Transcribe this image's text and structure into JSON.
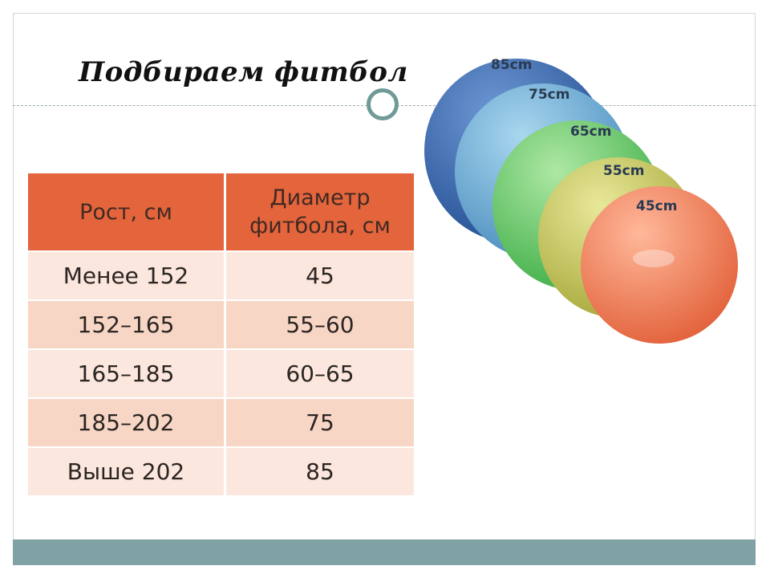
{
  "slide": {
    "title": "Подбираем фитбол"
  },
  "table": {
    "headers": {
      "height": "Рост, см",
      "diameter_line1": "Диаметр",
      "diameter_line2": "фитбола, см"
    },
    "rows": [
      {
        "height": "Менее 152",
        "diameter": "45"
      },
      {
        "height": "152–165",
        "diameter": "55–60"
      },
      {
        "height": "165–185",
        "diameter": "60–65"
      },
      {
        "height": "185–202",
        "diameter": "75"
      },
      {
        "height": "Выше 202",
        "diameter": "85"
      }
    ]
  },
  "balls": [
    {
      "label": "85cm",
      "color": "#3f6fb5"
    },
    {
      "label": "75cm",
      "color": "#6fb0d8"
    },
    {
      "label": "65cm",
      "color": "#72cc6a"
    },
    {
      "label": "55cm",
      "color": "#c8c85a"
    },
    {
      "label": "45cm",
      "color": "#ee7f52"
    }
  ],
  "colors": {
    "header_bg": "#e4643c",
    "row_light": "#fbe7de",
    "row_dark": "#f8d6c5",
    "bottom_bar": "#7fa3a5"
  }
}
